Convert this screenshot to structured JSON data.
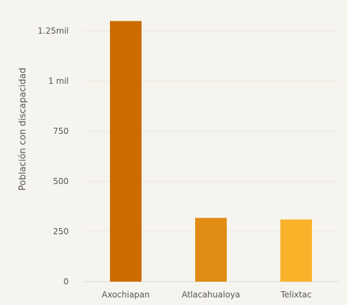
{
  "chart_data": {
    "type": "bar",
    "title": "",
    "xlabel": "",
    "ylabel": "Población con discapacidad",
    "categories": [
      "Axochiapan",
      "Atlacahualoya",
      "Telixtac"
    ],
    "values": [
      1300,
      318,
      310
    ],
    "ylim": [
      0,
      1350
    ],
    "yticks": [
      {
        "value": 0,
        "label": "0"
      },
      {
        "value": 250,
        "label": "250"
      },
      {
        "value": 500,
        "label": "500"
      },
      {
        "value": 750,
        "label": "750"
      },
      {
        "value": 1000,
        "label": "1 mil"
      },
      {
        "value": 1250,
        "label": "1.25mil"
      }
    ],
    "colors": [
      "#cc6c00",
      "#e08c14",
      "#fbb22b"
    ],
    "grid": true,
    "legend": "none"
  }
}
